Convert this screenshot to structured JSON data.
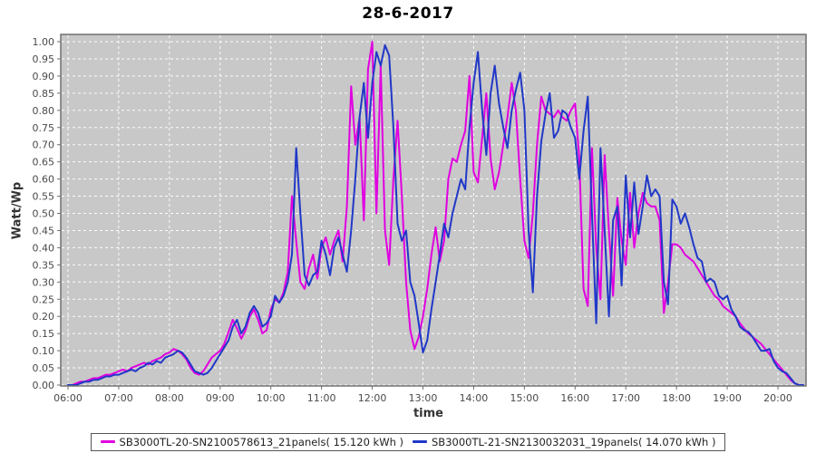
{
  "title": "28-6-2017",
  "chart_data": {
    "type": "line",
    "title": "28-6-2017",
    "xlabel": "time",
    "ylabel": "Watt/Wp",
    "x_ticks": [
      "06:00",
      "07:00",
      "08:00",
      "09:00",
      "10:00",
      "11:00",
      "12:00",
      "13:00",
      "14:00",
      "15:00",
      "16:00",
      "17:00",
      "18:00",
      "19:00",
      "20:00"
    ],
    "x_start_minutes": 360,
    "x_step_minutes": 5,
    "y_min": 0.0,
    "y_max": 1.0,
    "y_tick_step": 0.05,
    "grid": "white-dashed",
    "plot_background": "#c8c8c8",
    "plot_border_color": "#707070",
    "tick_label_color": "#4a4a4a",
    "legend_position": "bottom",
    "series": [
      {
        "name": "SB3000TL-20-SN2100578613_21panels( 15.120 kWh )",
        "color": "#e000e0",
        "values": [
          0.0,
          0.0,
          0.005,
          0.01,
          0.01,
          0.015,
          0.02,
          0.02,
          0.025,
          0.03,
          0.03,
          0.035,
          0.04,
          0.045,
          0.04,
          0.05,
          0.055,
          0.06,
          0.065,
          0.06,
          0.07,
          0.075,
          0.08,
          0.09,
          0.095,
          0.105,
          0.1,
          0.09,
          0.075,
          0.05,
          0.035,
          0.03,
          0.04,
          0.06,
          0.08,
          0.09,
          0.1,
          0.12,
          0.155,
          0.19,
          0.165,
          0.135,
          0.16,
          0.2,
          0.22,
          0.19,
          0.15,
          0.16,
          0.22,
          0.25,
          0.24,
          0.27,
          0.33,
          0.55,
          0.42,
          0.3,
          0.28,
          0.34,
          0.38,
          0.31,
          0.4,
          0.43,
          0.38,
          0.42,
          0.45,
          0.36,
          0.52,
          0.87,
          0.7,
          0.78,
          0.48,
          0.92,
          1.0,
          0.5,
          0.93,
          0.45,
          0.35,
          0.6,
          0.77,
          0.55,
          0.3,
          0.16,
          0.105,
          0.14,
          0.2,
          0.28,
          0.38,
          0.46,
          0.36,
          0.42,
          0.6,
          0.66,
          0.65,
          0.7,
          0.74,
          0.9,
          0.62,
          0.59,
          0.72,
          0.85,
          0.66,
          0.57,
          0.62,
          0.7,
          0.78,
          0.88,
          0.8,
          0.6,
          0.42,
          0.37,
          0.5,
          0.7,
          0.84,
          0.8,
          0.79,
          0.78,
          0.8,
          0.78,
          0.77,
          0.8,
          0.82,
          0.66,
          0.28,
          0.23,
          0.69,
          0.4,
          0.25,
          0.67,
          0.45,
          0.26,
          0.545,
          0.42,
          0.35,
          0.56,
          0.4,
          0.5,
          0.56,
          0.53,
          0.52,
          0.52,
          0.48,
          0.21,
          0.3,
          0.41,
          0.41,
          0.4,
          0.38,
          0.37,
          0.36,
          0.34,
          0.32,
          0.3,
          0.28,
          0.26,
          0.25,
          0.23,
          0.22,
          0.21,
          0.2,
          0.18,
          0.165,
          0.15,
          0.14,
          0.13,
          0.12,
          0.105,
          0.09,
          0.075,
          0.06,
          0.045,
          0.03,
          0.015,
          0.005,
          0.0,
          0.0
        ]
      },
      {
        "name": "SB3000TL-21-SN2130032031_19panels( 14.070 kWh )",
        "color": "#2038c8",
        "values": [
          0.0,
          0.0,
          0.0,
          0.005,
          0.01,
          0.01,
          0.015,
          0.015,
          0.02,
          0.025,
          0.025,
          0.03,
          0.03,
          0.035,
          0.04,
          0.045,
          0.04,
          0.05,
          0.055,
          0.065,
          0.06,
          0.07,
          0.065,
          0.08,
          0.085,
          0.09,
          0.1,
          0.095,
          0.08,
          0.06,
          0.04,
          0.035,
          0.03,
          0.035,
          0.05,
          0.07,
          0.09,
          0.11,
          0.13,
          0.17,
          0.19,
          0.15,
          0.17,
          0.21,
          0.23,
          0.21,
          0.17,
          0.18,
          0.2,
          0.26,
          0.24,
          0.26,
          0.3,
          0.38,
          0.69,
          0.5,
          0.32,
          0.29,
          0.32,
          0.33,
          0.42,
          0.38,
          0.32,
          0.4,
          0.43,
          0.38,
          0.33,
          0.45,
          0.6,
          0.78,
          0.88,
          0.72,
          0.88,
          0.97,
          0.93,
          0.99,
          0.96,
          0.75,
          0.47,
          0.42,
          0.45,
          0.3,
          0.26,
          0.18,
          0.095,
          0.13,
          0.22,
          0.3,
          0.38,
          0.47,
          0.43,
          0.5,
          0.55,
          0.6,
          0.57,
          0.75,
          0.88,
          0.97,
          0.8,
          0.67,
          0.85,
          0.93,
          0.82,
          0.75,
          0.69,
          0.8,
          0.86,
          0.91,
          0.8,
          0.45,
          0.27,
          0.55,
          0.71,
          0.79,
          0.85,
          0.72,
          0.74,
          0.8,
          0.79,
          0.75,
          0.72,
          0.6,
          0.74,
          0.84,
          0.5,
          0.18,
          0.69,
          0.45,
          0.2,
          0.48,
          0.52,
          0.29,
          0.61,
          0.43,
          0.59,
          0.44,
          0.52,
          0.61,
          0.55,
          0.57,
          0.55,
          0.3,
          0.235,
          0.54,
          0.52,
          0.47,
          0.5,
          0.46,
          0.41,
          0.37,
          0.36,
          0.3,
          0.31,
          0.3,
          0.26,
          0.25,
          0.26,
          0.22,
          0.2,
          0.17,
          0.16,
          0.155,
          0.14,
          0.12,
          0.1,
          0.1,
          0.105,
          0.07,
          0.05,
          0.04,
          0.035,
          0.02,
          0.005,
          0.0,
          0.0
        ]
      }
    ]
  },
  "legend": {
    "item1": "SB3000TL-20-SN2100578613_21panels( 15.120 kWh )",
    "item2": "SB3000TL-21-SN2130032031_19panels( 14.070 kWh )"
  }
}
